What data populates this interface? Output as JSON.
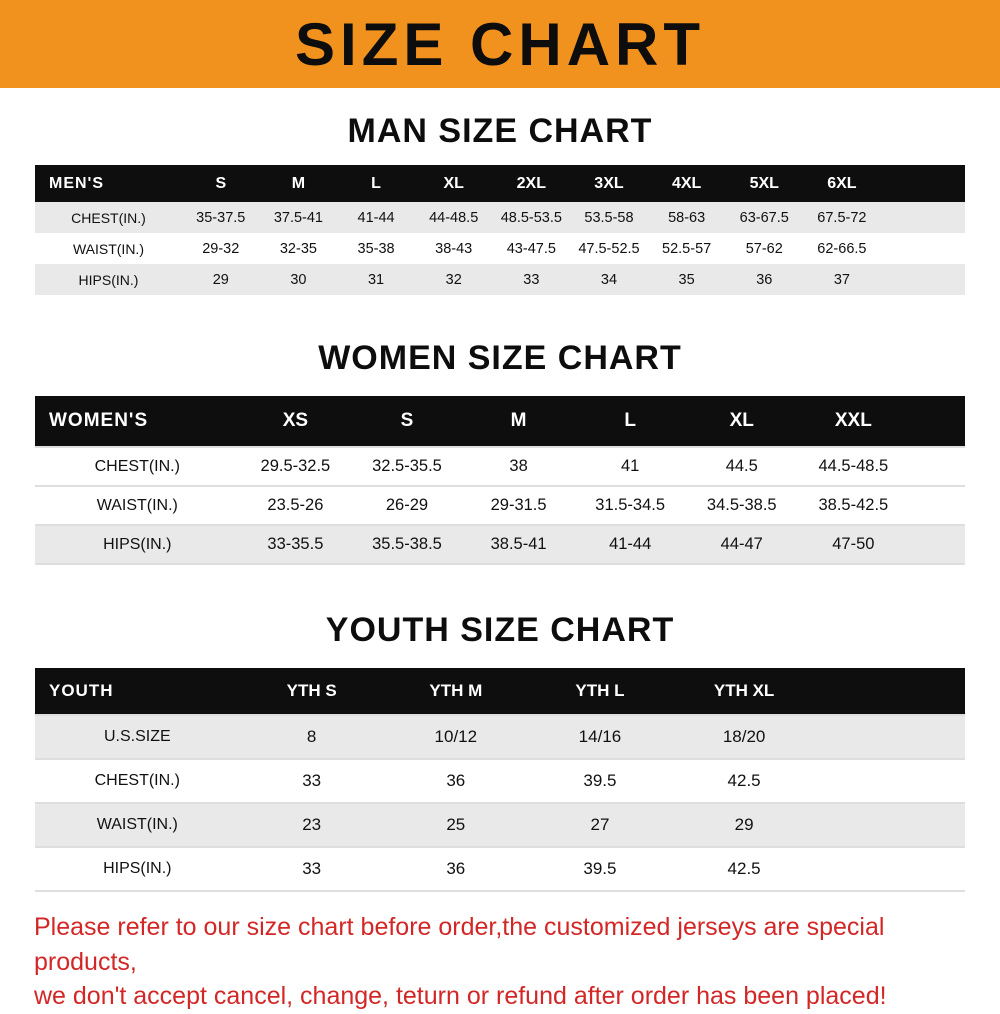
{
  "banner": {
    "title": "SIZE CHART",
    "bg_color": "#f2921e"
  },
  "sections": [
    {
      "heading": "MAN SIZE CHART",
      "table": {
        "header_label": "MEN'S",
        "columns": [
          "S",
          "M",
          "L",
          "XL",
          "2XL",
          "3XL",
          "4XL",
          "5XL",
          "6XL"
        ],
        "rows": [
          {
            "label": "CHEST(IN.)",
            "values": [
              "35-37.5",
              "37.5-41",
              "41-44",
              "44-48.5",
              "48.5-53.5",
              "53.5-58",
              "58-63",
              "63-67.5",
              "67.5-72"
            ]
          },
          {
            "label": "WAIST(IN.)",
            "values": [
              "29-32",
              "32-35",
              "35-38",
              "38-43",
              "43-47.5",
              "47.5-52.5",
              "52.5-57",
              "57-62",
              "62-66.5"
            ]
          },
          {
            "label": "HIPS(IN.)",
            "values": [
              "29",
              "30",
              "31",
              "32",
              "33",
              "34",
              "35",
              "36",
              "37"
            ]
          }
        ]
      }
    },
    {
      "heading": "WOMEN SIZE CHART",
      "table": {
        "header_label": "WOMEN'S",
        "columns": [
          "XS",
          "S",
          "M",
          "L",
          "XL",
          "XXL"
        ],
        "rows": [
          {
            "label": "CHEST(IN.)",
            "values": [
              "29.5-32.5",
              "32.5-35.5",
              "38",
              "41",
              "44.5",
              "44.5-48.5"
            ]
          },
          {
            "label": "WAIST(IN.)",
            "values": [
              "23.5-26",
              "26-29",
              "29-31.5",
              "31.5-34.5",
              "34.5-38.5",
              "38.5-42.5"
            ]
          },
          {
            "label": "HIPS(IN.)",
            "values": [
              "33-35.5",
              "35.5-38.5",
              "38.5-41",
              "41-44",
              "44-47",
              "47-50"
            ]
          }
        ]
      }
    },
    {
      "heading": "YOUTH SIZE CHART",
      "table": {
        "header_label": "YOUTH",
        "columns": [
          "YTH S",
          "YTH M",
          "YTH L",
          "YTH XL"
        ],
        "rows": [
          {
            "label": "U.S.SIZE",
            "values": [
              "8",
              "10/12",
              "14/16",
              "18/20"
            ]
          },
          {
            "label": "CHEST(IN.)",
            "values": [
              "33",
              "36",
              "39.5",
              "42.5"
            ]
          },
          {
            "label": "WAIST(IN.)",
            "values": [
              "23",
              "25",
              "27",
              "29"
            ]
          },
          {
            "label": "HIPS(IN.)",
            "values": [
              "33",
              "36",
              "39.5",
              "42.5"
            ]
          }
        ]
      }
    }
  ],
  "disclaimer": {
    "line1": "Please refer to our size chart before order,the customized jerseys are special products,",
    "line2": "we don't accept cancel, change, teturn or refund after order has been placed!"
  }
}
